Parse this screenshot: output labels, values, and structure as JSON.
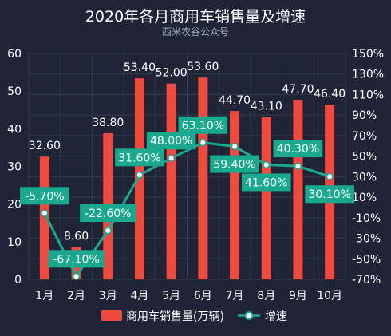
{
  "chart_data": {
    "type": "bar",
    "title": "2020年各月商用车销售量及增速",
    "subtitle": "西米农谷公众号",
    "categories": [
      "1月",
      "2月",
      "3月",
      "4月",
      "5月",
      "6月",
      "7月",
      "8月",
      "9月",
      "10月"
    ],
    "series": [
      {
        "name": "商用车销售量(万辆)",
        "type": "bar",
        "axis": "left",
        "values": [
          32.6,
          8.6,
          38.8,
          53.4,
          52.0,
          53.6,
          44.7,
          43.1,
          47.7,
          46.4
        ],
        "labels": [
          "32.60",
          "8.60",
          "38.80",
          "53.40",
          "52.00",
          "53.60",
          "44.70",
          "43.10",
          "47.70",
          "46.40"
        ],
        "color": "#ee4a3f"
      },
      {
        "name": "增速",
        "type": "line",
        "axis": "right",
        "values": [
          -5.7,
          -67.1,
          -22.6,
          31.6,
          48.0,
          63.1,
          59.4,
          41.6,
          40.3,
          30.1
        ],
        "labels": [
          "-5.70%",
          "-67.10%",
          "-22.60%",
          "31.60%",
          "48.00%",
          "63.10%",
          "59.40%",
          "41.60%",
          "40.30%",
          "30.10%"
        ],
        "color": "#1aa88f"
      }
    ],
    "y_left": {
      "ylim": [
        0,
        60
      ],
      "ticks": [
        0,
        10,
        20,
        30,
        40,
        50,
        60
      ],
      "tick_labels": [
        "0",
        "10",
        "20",
        "30",
        "40",
        "50",
        "60"
      ]
    },
    "y_right": {
      "ylim": [
        -70,
        150
      ],
      "ticks": [
        -70,
        -50,
        -30,
        -10,
        10,
        30,
        50,
        70,
        90,
        110,
        130,
        150
      ],
      "tick_labels": [
        "-70%",
        "-50%",
        "-30%",
        "-10%",
        "10%",
        "30%",
        "50%",
        "70%",
        "90%",
        "110%",
        "130%",
        "150%"
      ]
    },
    "grid": true,
    "legend_position": "bottom",
    "colors": {
      "background": "#1f2536",
      "grid": "#343b4e",
      "bar": "#ee4a3f",
      "line": "#1aa88f"
    }
  }
}
